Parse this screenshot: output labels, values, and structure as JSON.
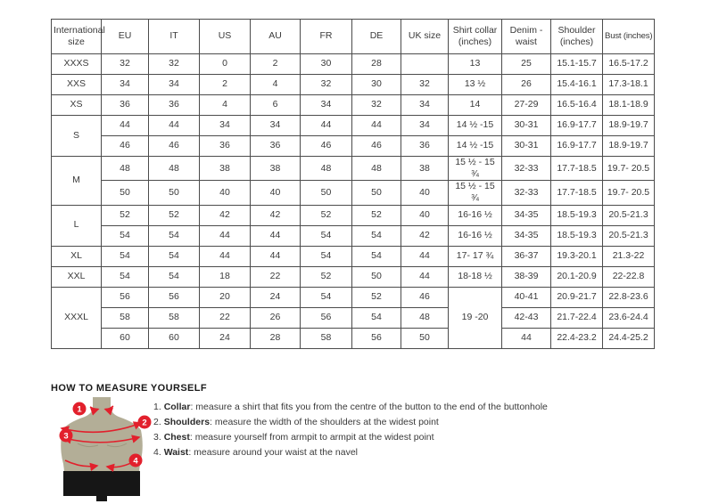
{
  "colors": {
    "accent_red": "#e2202c",
    "table_border": "#4c4c4c",
    "mannequin_body": "#b3ae97",
    "mannequin_shorts": "#161616"
  },
  "table": {
    "headers": [
      "International size",
      "EU",
      "IT",
      "US",
      "AU",
      "FR",
      "DE",
      "UK size",
      "Shirt collar (inches)",
      "Denim - waist",
      "Shoulder (inches)",
      "Bust (inches)"
    ],
    "groups": [
      {
        "label": "XXXS",
        "rows": [
          [
            "32",
            "32",
            "0",
            "2",
            "30",
            "28",
            "",
            "13",
            "25",
            "15.1-15.7",
            "16.5-17.2"
          ]
        ]
      },
      {
        "label": "XXS",
        "rows": [
          [
            "34",
            "34",
            "2",
            "4",
            "32",
            "30",
            "32",
            "13 ½",
            "26",
            "15.4-16.1",
            "17.3-18.1"
          ]
        ]
      },
      {
        "label": "XS",
        "rows": [
          [
            "36",
            "36",
            "4",
            "6",
            "34",
            "32",
            "34",
            "14",
            "27-29",
            "16.5-16.4",
            "18.1-18.9"
          ]
        ]
      },
      {
        "label": "S",
        "rows": [
          [
            "44",
            "44",
            "34",
            "34",
            "44",
            "44",
            "34",
            "14 ½ -15",
            "30-31",
            "16.9-17.7",
            "18.9-19.7"
          ],
          [
            "46",
            "46",
            "36",
            "36",
            "46",
            "46",
            "36",
            "14 ½ -15",
            "30-31",
            "16.9-17.7",
            "18.9-19.7"
          ]
        ]
      },
      {
        "label": "M",
        "rows": [
          [
            "48",
            "48",
            "38",
            "38",
            "48",
            "48",
            "38",
            "15 ½ - 15 ¾",
            "32-33",
            "17.7-18.5",
            "19.7- 20.5"
          ],
          [
            "50",
            "50",
            "40",
            "40",
            "50",
            "50",
            "40",
            "15 ½ - 15 ¾",
            "32-33",
            "17.7-18.5",
            "19.7- 20.5"
          ]
        ]
      },
      {
        "label": "L",
        "rows": [
          [
            "52",
            "52",
            "42",
            "42",
            "52",
            "52",
            "40",
            "16-16 ½",
            "34-35",
            "18.5-19.3",
            "20.5-21.3"
          ],
          [
            "54",
            "54",
            "44",
            "44",
            "54",
            "54",
            "42",
            "16-16 ½",
            "34-35",
            "18.5-19.3",
            "20.5-21.3"
          ]
        ]
      },
      {
        "label": "XL",
        "rows": [
          [
            "54",
            "54",
            "44",
            "44",
            "54",
            "54",
            "44",
            "17- 17 ¾",
            "36-37",
            "19.3-20.1",
            "21.3-22"
          ]
        ]
      },
      {
        "label": "XXL",
        "rows": [
          [
            "54",
            "54",
            "18",
            "22",
            "52",
            "50",
            "44",
            "18-18 ½",
            "38-39",
            "20.1-20.9",
            "22-22.8"
          ]
        ]
      },
      {
        "label": "XXXL",
        "rows": [
          [
            "56",
            "56",
            "20",
            "24",
            "54",
            "52",
            "46",
            {
              "text": "19 -20",
              "rowspan": 3
            },
            "40-41",
            "20.9-21.7",
            "22.8-23.6"
          ],
          [
            "58",
            "58",
            "22",
            "26",
            "56",
            "54",
            "48",
            null,
            "42-43",
            "21.7-22.4",
            "23.6-24.4"
          ],
          [
            "60",
            "60",
            "24",
            "28",
            "58",
            "56",
            "50",
            null,
            "44",
            "22.4-23.2",
            "24.4-25.2"
          ]
        ]
      }
    ]
  },
  "measure": {
    "title": "HOW TO MEASURE YOURSELF",
    "markers": [
      "1",
      "2",
      "3",
      "4"
    ],
    "steps": [
      {
        "num": "1.",
        "label": "Collar",
        "rest": ": measure a shirt that fits you from the centre of the button to the end of the buttonhole"
      },
      {
        "num": "2.",
        "label": "Shoulders",
        "rest": ": measure the width of the shoulders at the widest point"
      },
      {
        "num": "3.",
        "label": "Chest",
        "rest": ": measure yourself from armpit to armpit at the widest point"
      },
      {
        "num": "4.",
        "label": "Waist",
        "rest": ": measure around your waist at the navel"
      }
    ]
  }
}
